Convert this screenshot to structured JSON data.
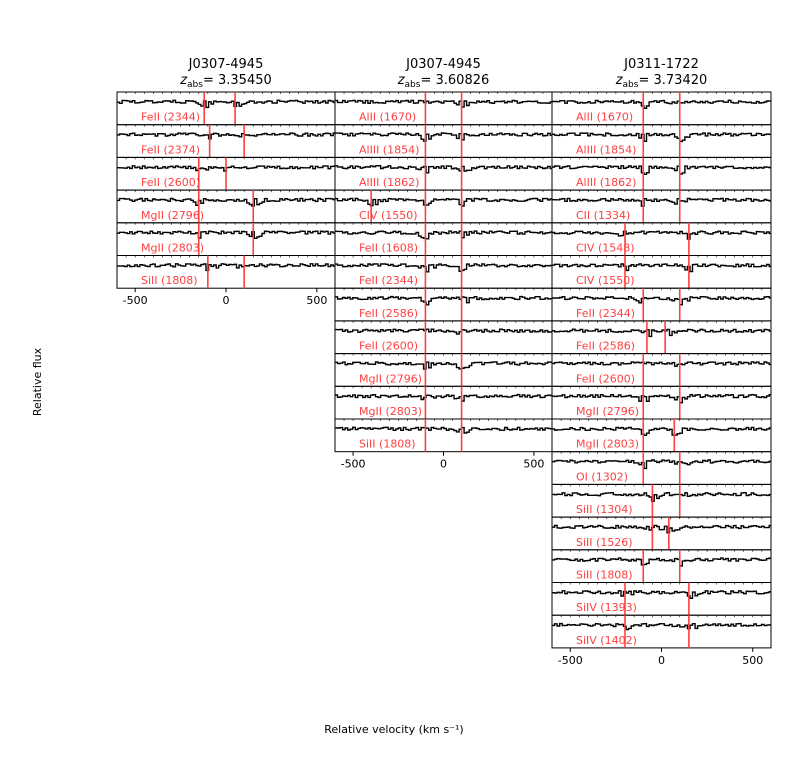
{
  "chart_data": {
    "type": "line",
    "xlabel": "Relative velocity (km s⁻¹)",
    "ylabel": "Relative flux",
    "xlim": [
      -600,
      600
    ],
    "xticks": [
      -500,
      0,
      500
    ],
    "line_color": "#ff4040",
    "columns": [
      {
        "title": "J0307-4945",
        "z_label": "z",
        "z_sub": "abs",
        "z_value": "= 3.35450",
        "vlines": [
          -120,
          100
        ],
        "panels": [
          {
            "ion": "FeII (2344)",
            "vlines": [
              -120,
              50
            ]
          },
          {
            "ion": "FeII (2374)",
            "vlines": [
              -90,
              100
            ]
          },
          {
            "ion": "FeII (2600)",
            "vlines": [
              -150,
              0
            ]
          },
          {
            "ion": "MgII (2796)",
            "vlines": [
              -150,
              150
            ]
          },
          {
            "ion": "MgII (2803)",
            "vlines": [
              -150,
              150
            ]
          },
          {
            "ion": "SiII (1808)",
            "vlines": [
              -100,
              100
            ]
          }
        ]
      },
      {
        "title": "J0307-4945",
        "z_label": "z",
        "z_sub": "abs",
        "z_value": "= 3.60826",
        "panels": [
          {
            "ion": "AlII (1670)",
            "vlines": [
              -100,
              100
            ]
          },
          {
            "ion": "AlIII (1854)",
            "vlines": [
              -100,
              100
            ]
          },
          {
            "ion": "AlIII (1862)",
            "vlines": [
              -100,
              100
            ]
          },
          {
            "ion": "CIV (1550)",
            "vlines": [
              -400,
              -100,
              100
            ]
          },
          {
            "ion": "FeII (1608)",
            "vlines": [
              -100,
              100
            ]
          },
          {
            "ion": "FeII (2344)",
            "vlines": [
              -100,
              100
            ]
          },
          {
            "ion": "FeII (2586)",
            "vlines": [
              -100,
              100
            ]
          },
          {
            "ion": "FeII (2600)",
            "vlines": [
              -100,
              100
            ]
          },
          {
            "ion": "MgII (2796)",
            "vlines": [
              -100,
              100
            ]
          },
          {
            "ion": "MgII (2803)",
            "vlines": [
              -100,
              100
            ]
          },
          {
            "ion": "SiII (1808)",
            "vlines": [
              -100,
              100
            ]
          }
        ]
      },
      {
        "title": "J0311-1722",
        "z_label": "z",
        "z_sub": "abs",
        "z_value": "= 3.73420",
        "panels": [
          {
            "ion": "AlII (1670)",
            "vlines": [
              -100,
              100
            ]
          },
          {
            "ion": "AlIII (1854)",
            "vlines": [
              -100,
              100
            ]
          },
          {
            "ion": "AlIII (1862)",
            "vlines": [
              -100,
              100
            ]
          },
          {
            "ion": "CII (1334)",
            "vlines": [
              -100,
              100
            ]
          },
          {
            "ion": "CIV (1548)",
            "vlines": [
              -200,
              150
            ]
          },
          {
            "ion": "CIV (1550)",
            "vlines": [
              -200,
              150
            ]
          },
          {
            "ion": "FeII (2344)",
            "vlines": [
              -100,
              100
            ]
          },
          {
            "ion": "FeII (2586)",
            "vlines": [
              -80,
              20
            ]
          },
          {
            "ion": "FeII (2600)",
            "vlines": [
              -100,
              100
            ]
          },
          {
            "ion": "MgII (2796)",
            "vlines": [
              -100,
              100
            ]
          },
          {
            "ion": "MgII (2803)",
            "vlines": [
              -100,
              70
            ]
          },
          {
            "ion": "OI (1302)",
            "vlines": [
              -100,
              100
            ]
          },
          {
            "ion": "SiII (1304)",
            "vlines": [
              -50,
              100
            ]
          },
          {
            "ion": "SiII (1526)",
            "vlines": [
              -50,
              40
            ]
          },
          {
            "ion": "SiII (1808)",
            "vlines": [
              -100,
              100
            ]
          },
          {
            "ion": "SiIV (1393)",
            "vlines": [
              -200,
              150
            ]
          },
          {
            "ion": "SiIV (1402)",
            "vlines": [
              -200,
              150
            ]
          }
        ]
      }
    ]
  }
}
